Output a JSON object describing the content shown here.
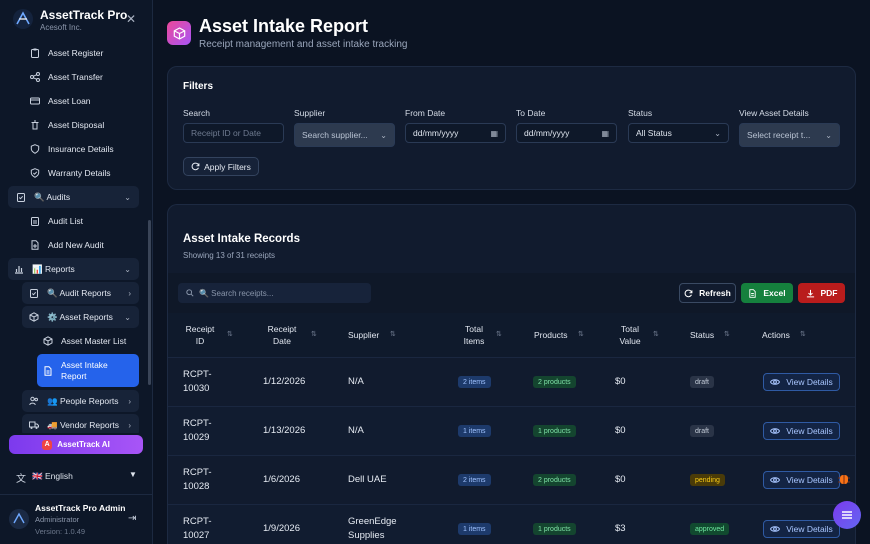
{
  "sidebar": {
    "brand_title": "AssetTrack Pro",
    "brand_subtitle": "Acesoft Inc.",
    "items": {
      "asset_register": "Asset Register",
      "asset_transfer": "Asset Transfer",
      "asset_loan": "Asset Loan",
      "asset_disposal": "Asset Disposal",
      "insurance_details": "Insurance Details",
      "warranty_details": "Warranty Details",
      "audits": "🔍 Audits",
      "audit_list": "Audit List",
      "add_new_audit": "Add New Audit",
      "reports": "📊 Reports",
      "audit_reports": "🔍 Audit Reports",
      "asset_reports": "⚙️ Asset Reports",
      "asset_master_list": "Asset Master List",
      "asset_intake_report_l1": "Asset Intake",
      "asset_intake_report_l2": "Report",
      "people_reports": "👥 People Reports",
      "vendor_reports": "🚚 Vendor Reports"
    },
    "ai_button": "AssetTrack AI",
    "language": "🇬🇧 English",
    "user": {
      "name": "AssetTrack Pro Admin",
      "role": "Administrator",
      "version": "Version: 1.0.49"
    }
  },
  "header": {
    "title": "Asset Intake Report",
    "subtitle": "Receipt management and asset intake tracking"
  },
  "filters": {
    "title": "Filters",
    "search_label": "Search",
    "search_placeholder": "Receipt ID or Date",
    "supplier_label": "Supplier",
    "supplier_value": "Search supplier...",
    "from_label": "From Date",
    "from_value": "dd/mm/yyyy",
    "to_label": "To Date",
    "to_value": "dd/mm/yyyy",
    "status_label": "Status",
    "status_value": "All Status",
    "view_label": "View Asset Details",
    "view_value": "Select receipt t...",
    "apply": "Apply Filters"
  },
  "records": {
    "title": "Asset Intake Records",
    "subtitle": "Showing 13 of 31 receipts",
    "search_placeholder": "🔍 Search receipts...",
    "refresh": "Refresh",
    "excel": "Excel",
    "pdf": "PDF",
    "columns": {
      "receipt_id_l1": "Receipt",
      "receipt_id_l2": "ID",
      "receipt_date_l1": "Receipt",
      "receipt_date_l2": "Date",
      "supplier": "Supplier",
      "total_items_l1": "Total",
      "total_items_l2": "Items",
      "products": "Products",
      "total_value_l1": "Total",
      "total_value_l2": "Value",
      "status": "Status",
      "actions": "Actions"
    },
    "rows": [
      {
        "id_l1": "RCPT-",
        "id_l2": "10030",
        "date": "1/12/2026",
        "supplier_l1": "N/A",
        "supplier_l2": "",
        "items": "2 items",
        "products": "2 products",
        "value": "$0",
        "status": "draft",
        "action": "View Details"
      },
      {
        "id_l1": "RCPT-",
        "id_l2": "10029",
        "date": "1/13/2026",
        "supplier_l1": "N/A",
        "supplier_l2": "",
        "items": "1 items",
        "products": "1 products",
        "value": "$0",
        "status": "draft",
        "action": "View Details"
      },
      {
        "id_l1": "RCPT-",
        "id_l2": "10028",
        "date": "1/6/2026",
        "supplier_l1": "Dell UAE",
        "supplier_l2": "",
        "items": "2 items",
        "products": "2 products",
        "value": "$0",
        "status": "pending",
        "action": "View Details"
      },
      {
        "id_l1": "RCPT-",
        "id_l2": "10027",
        "date": "1/9/2026",
        "supplier_l1": "GreenEdge",
        "supplier_l2": "Supplies",
        "items": "1 items",
        "products": "1 products",
        "value": "$3",
        "status": "approved",
        "action": "View Details"
      }
    ]
  },
  "colors": {
    "accent": "#2563eb",
    "excel": "#15803d",
    "pdf": "#b91c1c",
    "ai_gradient": "#8b5cf6"
  }
}
